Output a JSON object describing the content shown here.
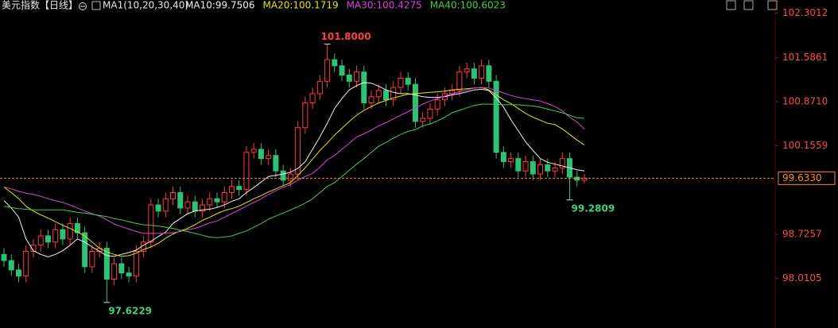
{
  "chart_data": {
    "type": "candlestick",
    "title": "美元指数【日线】",
    "indicator": "MA1(10,20,30,40)",
    "up_color": "#ff3c3c",
    "down_color": "#2fc277",
    "ylim": [
      97.21,
      102.36
    ],
    "yticks": [
      102.3012,
      101.5861,
      {
        "value": 100.871,
        "label": "100.8710"
      },
      100.1559,
      98.7257,
      98.0105
    ],
    "open": [
      98.4,
      98.3,
      98.15,
      98.05,
      98.45,
      98.55,
      98.7,
      98.6,
      98.8,
      98.65,
      98.9,
      98.75,
      98.2,
      98.45,
      98.5,
      98.0,
      98.25,
      98.1,
      98.05,
      98.45,
      98.6,
      99.2,
      99.1,
      99.3,
      99.4,
      99.15,
      99.25,
      99.1,
      99.2,
      99.3,
      99.25,
      99.4,
      99.5,
      99.45,
      100.05,
      100.1,
      99.95,
      100.0,
      99.75,
      99.6,
      99.7,
      100.45,
      100.85,
      101.0,
      101.2,
      101.55,
      101.45,
      101.3,
      101.2,
      101.35,
      100.85,
      100.95,
      101.05,
      100.9,
      101.1,
      101.25,
      101.15,
      100.55,
      100.6,
      100.75,
      100.9,
      101.0,
      101.05,
      101.35,
      101.4,
      101.25,
      101.45,
      101.2,
      100.05,
      99.9,
      99.95,
      99.75,
      99.9,
      99.7,
      99.85,
      99.75,
      99.8,
      99.95,
      99.65,
      99.6
    ],
    "high": [
      98.5,
      98.4,
      98.25,
      98.55,
      98.65,
      98.8,
      98.8,
      98.9,
      98.9,
      99.0,
      99.0,
      98.85,
      98.55,
      98.6,
      98.6,
      98.35,
      98.35,
      98.2,
      98.55,
      98.7,
      99.3,
      99.3,
      99.4,
      99.5,
      99.5,
      99.35,
      99.35,
      99.3,
      99.4,
      99.4,
      99.5,
      99.6,
      99.6,
      100.15,
      100.2,
      100.2,
      100.1,
      100.1,
      99.85,
      99.8,
      100.55,
      100.95,
      101.1,
      101.3,
      101.8,
      101.65,
      101.55,
      101.4,
      101.45,
      101.45,
      101.05,
      101.15,
      101.15,
      101.2,
      101.35,
      101.35,
      101.25,
      100.7,
      100.85,
      101.0,
      101.1,
      101.15,
      101.45,
      101.5,
      101.5,
      101.55,
      101.55,
      101.3,
      100.15,
      100.05,
      100.05,
      100.0,
      100.0,
      99.95,
      99.95,
      99.9,
      100.05,
      100.05,
      99.75,
      99.7
    ],
    "low": [
      98.2,
      98.05,
      97.95,
      97.95,
      98.35,
      98.45,
      98.5,
      98.5,
      98.55,
      98.55,
      98.65,
      98.1,
      98.1,
      98.35,
      97.6229,
      97.9,
      98.0,
      97.95,
      97.95,
      98.35,
      98.5,
      99.0,
      99.0,
      99.2,
      99.05,
      99.05,
      99.0,
      99.0,
      99.1,
      99.15,
      99.15,
      99.3,
      99.35,
      99.35,
      99.95,
      99.85,
      99.85,
      99.65,
      99.5,
      99.5,
      99.6,
      100.35,
      100.75,
      100.9,
      101.1,
      101.35,
      101.2,
      101.1,
      101.1,
      100.75,
      100.75,
      100.85,
      100.8,
      100.8,
      101.0,
      101.05,
      100.45,
      100.45,
      100.5,
      100.65,
      100.8,
      100.9,
      100.95,
      101.25,
      101.15,
      101.15,
      101.1,
      99.95,
      99.8,
      99.8,
      99.65,
      99.65,
      99.6,
      99.6,
      99.65,
      99.65,
      99.7,
      99.2809,
      99.5,
      99.55
    ],
    "close": [
      98.3,
      98.15,
      98.05,
      98.45,
      98.55,
      98.7,
      98.6,
      98.8,
      98.65,
      98.9,
      98.75,
      98.2,
      98.45,
      98.5,
      98.0,
      98.25,
      98.1,
      98.05,
      98.45,
      98.6,
      99.2,
      99.1,
      99.3,
      99.4,
      99.15,
      99.25,
      99.1,
      99.2,
      99.3,
      99.25,
      99.4,
      99.5,
      99.45,
      100.05,
      100.1,
      99.95,
      100.0,
      99.75,
      99.6,
      99.7,
      100.45,
      100.85,
      101.0,
      101.2,
      101.55,
      101.45,
      101.3,
      101.2,
      101.35,
      100.85,
      100.95,
      101.05,
      100.9,
      101.1,
      101.25,
      101.15,
      100.55,
      100.6,
      100.75,
      100.9,
      101.0,
      101.05,
      101.35,
      101.4,
      101.25,
      101.45,
      101.2,
      100.05,
      99.9,
      99.95,
      99.75,
      99.9,
      99.7,
      99.85,
      99.75,
      99.8,
      99.95,
      99.65,
      99.6,
      99.633
    ],
    "series": [
      {
        "name": "MA10",
        "legend_label": "MA10:99.7506",
        "color": "#f2f2f2",
        "values": [
          99.27,
          99.15,
          99.0,
          98.65,
          98.46,
          98.4,
          98.36,
          98.4,
          98.46,
          98.55,
          98.65,
          98.6,
          98.52,
          98.45,
          98.38,
          98.37,
          98.4,
          98.43,
          98.47,
          98.55,
          98.61,
          98.69,
          98.76,
          98.9,
          98.98,
          99.06,
          99.1,
          99.12,
          99.13,
          99.16,
          99.2,
          99.26,
          99.3,
          99.4,
          99.48,
          99.57,
          99.66,
          99.68,
          99.7,
          99.73,
          99.79,
          99.9,
          100.1,
          100.3,
          100.52,
          100.76,
          100.92,
          101.06,
          101.13,
          101.18,
          101.17,
          101.12,
          101.06,
          101.02,
          101.0,
          101.0,
          100.98,
          100.95,
          100.94,
          100.94,
          100.95,
          100.98,
          101.0,
          101.03,
          101.06,
          101.07,
          101.05,
          100.93,
          100.78,
          100.58,
          100.4,
          100.22,
          100.08,
          99.95,
          99.89,
          99.86,
          99.83,
          99.8,
          99.77,
          99.7506
        ]
      },
      {
        "name": "MA20",
        "legend_label": "MA20:100.1719",
        "color": "#e6e600",
        "values": [
          99.49,
          99.4,
          99.3,
          99.18,
          99.1,
          99.04,
          98.99,
          98.93,
          98.87,
          98.82,
          98.76,
          98.7,
          98.6,
          98.5,
          98.44,
          98.4,
          98.37,
          98.38,
          98.42,
          98.48,
          98.52,
          98.58,
          98.66,
          98.73,
          98.78,
          98.82,
          98.88,
          98.95,
          99.0,
          99.06,
          99.11,
          99.14,
          99.18,
          99.24,
          99.3,
          99.35,
          99.41,
          99.46,
          99.51,
          99.56,
          99.68,
          99.8,
          99.94,
          100.08,
          100.2,
          100.33,
          100.44,
          100.55,
          100.65,
          100.73,
          100.79,
          100.85,
          100.89,
          100.93,
          100.96,
          100.99,
          101.0,
          101.01,
          101.02,
          101.03,
          101.04,
          101.06,
          101.07,
          101.08,
          101.09,
          101.1,
          101.06,
          100.98,
          100.9,
          100.84,
          100.76,
          100.68,
          100.62,
          100.57,
          100.52,
          100.5,
          100.43,
          100.34,
          100.25,
          100.1719
        ]
      },
      {
        "name": "MA30",
        "legend_label": "MA30:100.4275",
        "color": "#e040e0",
        "values": [
          99.49,
          99.46,
          99.42,
          99.39,
          99.37,
          99.34,
          99.3,
          99.27,
          99.24,
          99.2,
          99.15,
          99.1,
          99.06,
          99.02,
          98.96,
          98.89,
          98.85,
          98.81,
          98.77,
          98.74,
          98.74,
          98.74,
          98.74,
          98.75,
          98.77,
          98.8,
          98.82,
          98.86,
          98.91,
          98.94,
          99.0,
          99.06,
          99.12,
          99.18,
          99.24,
          99.3,
          99.37,
          99.43,
          99.48,
          99.53,
          99.6,
          99.66,
          99.71,
          99.81,
          99.93,
          100.0,
          100.1,
          100.2,
          100.3,
          100.35,
          100.41,
          100.48,
          100.53,
          100.59,
          100.65,
          100.71,
          100.77,
          100.83,
          100.88,
          100.92,
          100.96,
          101.0,
          101.03,
          101.06,
          101.09,
          101.1,
          101.09,
          101.05,
          101.01,
          100.97,
          100.94,
          100.92,
          100.9,
          100.88,
          100.84,
          100.79,
          100.72,
          100.62,
          100.54,
          100.4275
        ]
      },
      {
        "name": "MA40",
        "legend_label": "MA40:100.6023",
        "color": "#3fd13f",
        "values": [
          99.18,
          99.16,
          99.14,
          99.13,
          99.12,
          99.12,
          99.12,
          99.12,
          99.12,
          99.1,
          99.08,
          99.07,
          99.05,
          99.03,
          99.01,
          98.98,
          98.96,
          98.93,
          98.9,
          98.88,
          98.87,
          98.86,
          98.84,
          98.82,
          98.79,
          98.77,
          98.74,
          98.71,
          98.68,
          98.67,
          98.68,
          98.7,
          98.74,
          98.78,
          98.84,
          98.9,
          98.97,
          99.02,
          99.07,
          99.12,
          99.17,
          99.23,
          99.3,
          99.4,
          99.5,
          99.56,
          99.66,
          99.76,
          99.86,
          99.95,
          100.05,
          100.15,
          100.21,
          100.28,
          100.34,
          100.39,
          100.42,
          100.48,
          100.51,
          100.56,
          100.62,
          100.69,
          100.73,
          100.77,
          100.81,
          100.83,
          100.83,
          100.83,
          100.82,
          100.82,
          100.82,
          100.81,
          100.8,
          100.78,
          100.75,
          100.72,
          100.69,
          100.65,
          100.61,
          100.6023
        ]
      }
    ],
    "annotations": [
      {
        "value": 101.8,
        "label": "101.8000",
        "color": "#ff4040"
      },
      {
        "value": 97.6229,
        "label": "97.6229",
        "color": "#40d080"
      },
      {
        "value": 99.2809,
        "label": "99.2809",
        "color": "#40d080"
      }
    ],
    "current": {
      "value": 99.633,
      "label": "99.6330",
      "color": "#ff8c1a"
    }
  }
}
